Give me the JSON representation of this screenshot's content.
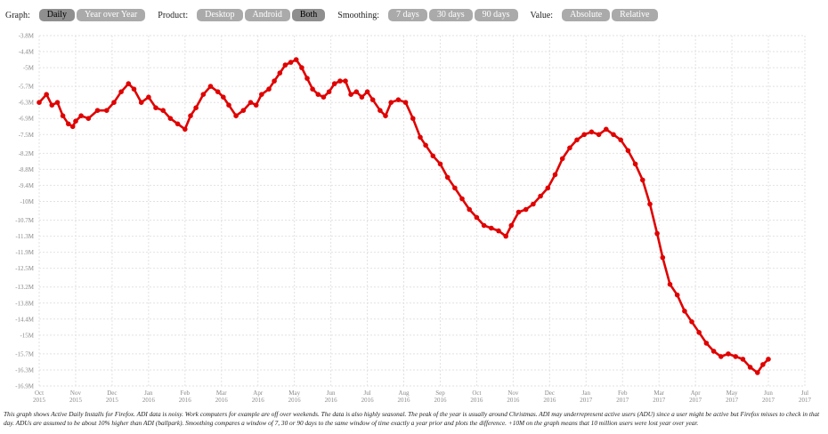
{
  "controls": [
    {
      "label": "Graph:",
      "buttons": [
        {
          "label": "Daily",
          "active": true
        },
        {
          "label": "Year over Year",
          "active": false
        }
      ]
    },
    {
      "label": "Product:",
      "buttons": [
        {
          "label": "Desktop",
          "active": false
        },
        {
          "label": "Android",
          "active": false
        },
        {
          "label": "Both",
          "active": true
        }
      ]
    },
    {
      "label": "Smoothing:",
      "buttons": [
        {
          "label": "7 days",
          "active": false
        },
        {
          "label": "30 days",
          "active": false
        },
        {
          "label": "90 days",
          "active": false
        }
      ]
    },
    {
      "label": "Value:",
      "buttons": [
        {
          "label": "Absolute",
          "active": false
        },
        {
          "label": "Relative",
          "active": false
        }
      ]
    }
  ],
  "caption": "This graph shows Active Daily Installs for Firefox. ADI data is noisy. Work computers for example are off over weekends. The data is also highly seasonal. The peak of the year is usually around Christmas. ADI may underrepresent active users (ADU) since a user might be active but Firefox misses to check in that day. ADUs are assumed to be about 10% higher than ADI (ballpark). Smoothing compares a window of 7, 30 or 90 days to the same window of time exactly a year prior and plots the difference. +10M on the graph means that 10 million users were lost year over year.",
  "colors": {
    "line": "#e00000",
    "button": "#aaaaaa",
    "button_active": "#8f8f8f"
  },
  "chart_data": {
    "type": "line",
    "title": "",
    "xlabel": "",
    "ylabel": "",
    "grid": true,
    "legend": "none",
    "x_ticks": [
      {
        "month": "Oct",
        "year": "2015",
        "t": 0
      },
      {
        "month": "Nov",
        "year": "2015",
        "t": 1
      },
      {
        "month": "Dec",
        "year": "2015",
        "t": 2
      },
      {
        "month": "Jan",
        "year": "2016",
        "t": 3
      },
      {
        "month": "Feb",
        "year": "2016",
        "t": 4
      },
      {
        "month": "Mar",
        "year": "2016",
        "t": 5
      },
      {
        "month": "Apr",
        "year": "2016",
        "t": 6
      },
      {
        "month": "May",
        "year": "2016",
        "t": 7
      },
      {
        "month": "Jun",
        "year": "2016",
        "t": 8
      },
      {
        "month": "Jul",
        "year": "2016",
        "t": 9
      },
      {
        "month": "Aug",
        "year": "2016",
        "t": 10
      },
      {
        "month": "Sep",
        "year": "2016",
        "t": 11
      },
      {
        "month": "Oct",
        "year": "2016",
        "t": 12
      },
      {
        "month": "Nov",
        "year": "2016",
        "t": 13
      },
      {
        "month": "Dec",
        "year": "2016",
        "t": 14
      },
      {
        "month": "Jan",
        "year": "2017",
        "t": 15
      },
      {
        "month": "Feb",
        "year": "2017",
        "t": 16
      },
      {
        "month": "Mar",
        "year": "2017",
        "t": 17
      },
      {
        "month": "Apr",
        "year": "2017",
        "t": 18
      },
      {
        "month": "May",
        "year": "2017",
        "t": 19
      },
      {
        "month": "Jun",
        "year": "2017",
        "t": 20
      },
      {
        "month": "Jul",
        "year": "2017",
        "t": 21
      }
    ],
    "y_ticks": [
      {
        "label": "-3.8M",
        "v": -3.8
      },
      {
        "label": "-4.4M",
        "v": -4.4
      },
      {
        "label": "-5M",
        "v": -5.0
      },
      {
        "label": "-5.7M",
        "v": -5.7
      },
      {
        "label": "-6.3M",
        "v": -6.3
      },
      {
        "label": "-6.9M",
        "v": -6.9
      },
      {
        "label": "-7.5M",
        "v": -7.5
      },
      {
        "label": "-8.2M",
        "v": -8.2
      },
      {
        "label": "-8.8M",
        "v": -8.8
      },
      {
        "label": "-9.4M",
        "v": -9.4
      },
      {
        "label": "-10M",
        "v": -10.0
      },
      {
        "label": "-10.7M",
        "v": -10.7
      },
      {
        "label": "-11.3M",
        "v": -11.3
      },
      {
        "label": "-11.9M",
        "v": -11.9
      },
      {
        "label": "-12.5M",
        "v": -12.5
      },
      {
        "label": "-13.2M",
        "v": -13.2
      },
      {
        "label": "-13.8M",
        "v": -13.8
      },
      {
        "label": "-14.4M",
        "v": -14.4
      },
      {
        "label": "-15M",
        "v": -15.0
      },
      {
        "label": "-15.7M",
        "v": -15.7
      },
      {
        "label": "-16.3M",
        "v": -16.3
      },
      {
        "label": "-16.9M",
        "v": -16.9
      }
    ],
    "ylim": [
      -16.9,
      -3.8
    ],
    "series": [
      {
        "points": [
          [
            0.0,
            -6.3
          ],
          [
            0.2,
            -6.0
          ],
          [
            0.35,
            -6.4
          ],
          [
            0.5,
            -6.3
          ],
          [
            0.65,
            -6.8
          ],
          [
            0.8,
            -7.1
          ],
          [
            0.92,
            -7.2
          ],
          [
            1.0,
            -7.0
          ],
          [
            1.15,
            -6.8
          ],
          [
            1.35,
            -6.9
          ],
          [
            1.6,
            -6.6
          ],
          [
            1.85,
            -6.6
          ],
          [
            2.05,
            -6.3
          ],
          [
            2.25,
            -5.9
          ],
          [
            2.45,
            -5.6
          ],
          [
            2.6,
            -5.8
          ],
          [
            2.8,
            -6.3
          ],
          [
            3.0,
            -6.1
          ],
          [
            3.2,
            -6.5
          ],
          [
            3.4,
            -6.6
          ],
          [
            3.6,
            -6.9
          ],
          [
            3.8,
            -7.1
          ],
          [
            4.0,
            -7.3
          ],
          [
            4.15,
            -6.8
          ],
          [
            4.3,
            -6.5
          ],
          [
            4.5,
            -6.0
          ],
          [
            4.7,
            -5.7
          ],
          [
            4.9,
            -5.9
          ],
          [
            5.05,
            -6.1
          ],
          [
            5.2,
            -6.4
          ],
          [
            5.4,
            -6.8
          ],
          [
            5.6,
            -6.6
          ],
          [
            5.8,
            -6.3
          ],
          [
            5.95,
            -6.4
          ],
          [
            6.1,
            -6.0
          ],
          [
            6.3,
            -5.8
          ],
          [
            6.45,
            -5.5
          ],
          [
            6.6,
            -5.2
          ],
          [
            6.75,
            -4.9
          ],
          [
            6.9,
            -4.8
          ],
          [
            7.05,
            -4.7
          ],
          [
            7.2,
            -5.0
          ],
          [
            7.35,
            -5.4
          ],
          [
            7.5,
            -5.8
          ],
          [
            7.65,
            -6.0
          ],
          [
            7.8,
            -6.1
          ],
          [
            7.95,
            -5.9
          ],
          [
            8.1,
            -5.6
          ],
          [
            8.25,
            -5.5
          ],
          [
            8.4,
            -5.5
          ],
          [
            8.55,
            -6.0
          ],
          [
            8.7,
            -5.9
          ],
          [
            8.85,
            -6.1
          ],
          [
            9.0,
            -5.9
          ],
          [
            9.15,
            -6.2
          ],
          [
            9.35,
            -6.6
          ],
          [
            9.5,
            -6.8
          ],
          [
            9.65,
            -6.3
          ],
          [
            9.85,
            -6.2
          ],
          [
            10.05,
            -6.3
          ],
          [
            10.25,
            -6.9
          ],
          [
            10.45,
            -7.6
          ],
          [
            10.6,
            -7.9
          ],
          [
            10.8,
            -8.3
          ],
          [
            11.0,
            -8.6
          ],
          [
            11.2,
            -9.1
          ],
          [
            11.4,
            -9.5
          ],
          [
            11.6,
            -9.9
          ],
          [
            11.8,
            -10.3
          ],
          [
            12.0,
            -10.6
          ],
          [
            12.2,
            -10.9
          ],
          [
            12.4,
            -11.0
          ],
          [
            12.6,
            -11.1
          ],
          [
            12.8,
            -11.3
          ],
          [
            12.95,
            -10.9
          ],
          [
            13.15,
            -10.4
          ],
          [
            13.35,
            -10.3
          ],
          [
            13.55,
            -10.1
          ],
          [
            13.75,
            -9.8
          ],
          [
            13.95,
            -9.5
          ],
          [
            14.15,
            -9.0
          ],
          [
            14.35,
            -8.4
          ],
          [
            14.55,
            -8.0
          ],
          [
            14.75,
            -7.7
          ],
          [
            14.95,
            -7.5
          ],
          [
            15.15,
            -7.4
          ],
          [
            15.35,
            -7.5
          ],
          [
            15.55,
            -7.3
          ],
          [
            15.75,
            -7.5
          ],
          [
            15.95,
            -7.7
          ],
          [
            16.15,
            -8.1
          ],
          [
            16.35,
            -8.6
          ],
          [
            16.55,
            -9.2
          ],
          [
            16.75,
            -10.1
          ],
          [
            16.95,
            -11.2
          ],
          [
            17.1,
            -12.1
          ],
          [
            17.3,
            -13.1
          ],
          [
            17.5,
            -13.5
          ],
          [
            17.7,
            -14.1
          ],
          [
            17.9,
            -14.5
          ],
          [
            18.1,
            -14.9
          ],
          [
            18.3,
            -15.3
          ],
          [
            18.5,
            -15.6
          ],
          [
            18.7,
            -15.8
          ],
          [
            18.9,
            -15.7
          ],
          [
            19.1,
            -15.8
          ],
          [
            19.3,
            -15.9
          ],
          [
            19.5,
            -16.2
          ],
          [
            19.7,
            -16.4
          ],
          [
            19.85,
            -16.1
          ],
          [
            20.0,
            -15.9
          ]
        ]
      }
    ]
  }
}
